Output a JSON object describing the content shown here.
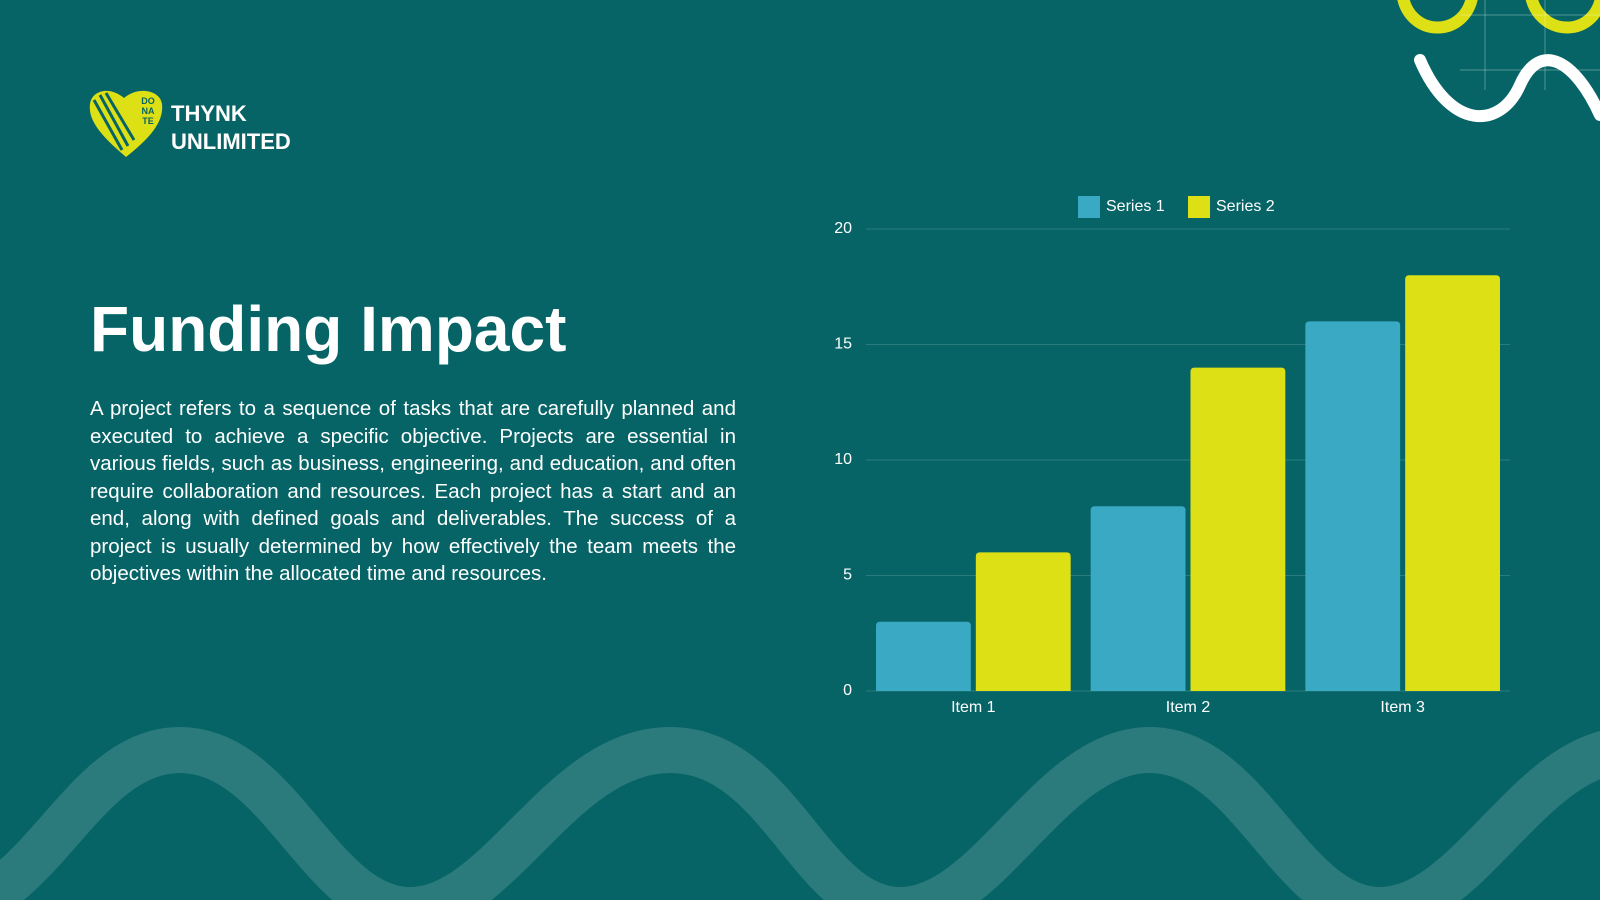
{
  "logo": {
    "badge": [
      "DO",
      "NA",
      "TE"
    ],
    "lines": [
      "THYNK",
      "UNLIMITED"
    ]
  },
  "title": "Funding Impact",
  "body": "A project refers to a sequence of tasks that are carefully planned and executed to achieve a specific objective. Projects are essential in various fields, such as business, engineering, and education, and often require collaboration and resources. Each project has a start and an end, along with defined goals and deliverables. The success of a project is usually determined by how effectively the team meets the objectives within the allocated time and resources.",
  "chart_data": {
    "type": "bar",
    "categories": [
      "Item 1",
      "Item 2",
      "Item 3"
    ],
    "series": [
      {
        "name": "Series 1",
        "color": "#3aa9c4",
        "values": [
          3,
          8,
          16
        ]
      },
      {
        "name": "Series 2",
        "color": "#dde014",
        "values": [
          6,
          14,
          18
        ]
      }
    ],
    "ylim": [
      0,
      20
    ],
    "yticks": [
      0,
      5,
      10,
      15,
      20
    ],
    "grid": true,
    "legend": "top"
  }
}
